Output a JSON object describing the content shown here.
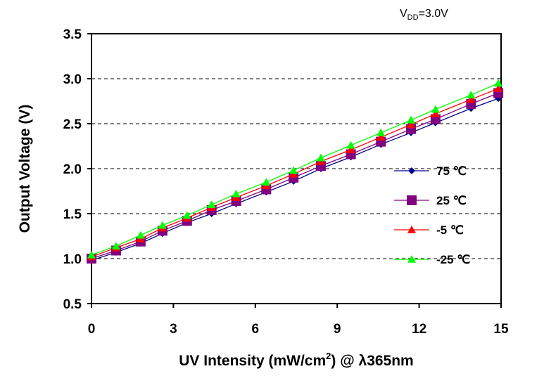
{
  "chart_data": {
    "type": "line",
    "annotation": {
      "main": "V",
      "sub": "DD",
      "rest": "=3.0V"
    },
    "xlabel": {
      "pre": "UV Intensity (mW/cm",
      "sup": "2",
      "post": ") @ λ365nm"
    },
    "ylabel": "Output Voltage (V)",
    "xlim": [
      0,
      15
    ],
    "ylim": [
      0.5,
      3.5
    ],
    "xticks": [
      "0",
      "3",
      "6",
      "9",
      "12",
      "15"
    ],
    "yticks": [
      "0.5",
      "1.0",
      "1.5",
      "2.0",
      "2.5",
      "3.0",
      "3.5"
    ],
    "grid": "horizontal-dashed",
    "legend_position": "right",
    "x": [
      0,
      0.9,
      1.8,
      2.6,
      3.5,
      4.4,
      5.3,
      6.4,
      7.4,
      8.4,
      9.5,
      10.6,
      11.7,
      12.6,
      13.9,
      14.9
    ],
    "series": [
      {
        "name": "75 ℃",
        "color": "#00008b",
        "marker": "diamond",
        "values": [
          0.98,
          1.07,
          1.17,
          1.28,
          1.4,
          1.5,
          1.61,
          1.74,
          1.86,
          2.0,
          2.13,
          2.27,
          2.4,
          2.51,
          2.67,
          2.78
        ]
      },
      {
        "name": "25 ℃",
        "color": "#800080",
        "marker": "square",
        "values": [
          1.0,
          1.09,
          1.19,
          1.31,
          1.42,
          1.54,
          1.64,
          1.77,
          1.9,
          2.03,
          2.16,
          2.3,
          2.44,
          2.55,
          2.72,
          2.84
        ]
      },
      {
        "name": "-5 ℃",
        "color": "#ff0000",
        "marker": "triangle",
        "values": [
          1.02,
          1.12,
          1.22,
          1.34,
          1.45,
          1.57,
          1.68,
          1.81,
          1.94,
          2.08,
          2.21,
          2.35,
          2.49,
          2.61,
          2.77,
          2.89
        ]
      },
      {
        "name": "-25 ℃",
        "color": "#00ff00",
        "marker": "triangle",
        "values": [
          1.04,
          1.14,
          1.26,
          1.37,
          1.48,
          1.6,
          1.72,
          1.85,
          1.98,
          2.12,
          2.26,
          2.4,
          2.54,
          2.66,
          2.82,
          2.95
        ]
      }
    ]
  }
}
